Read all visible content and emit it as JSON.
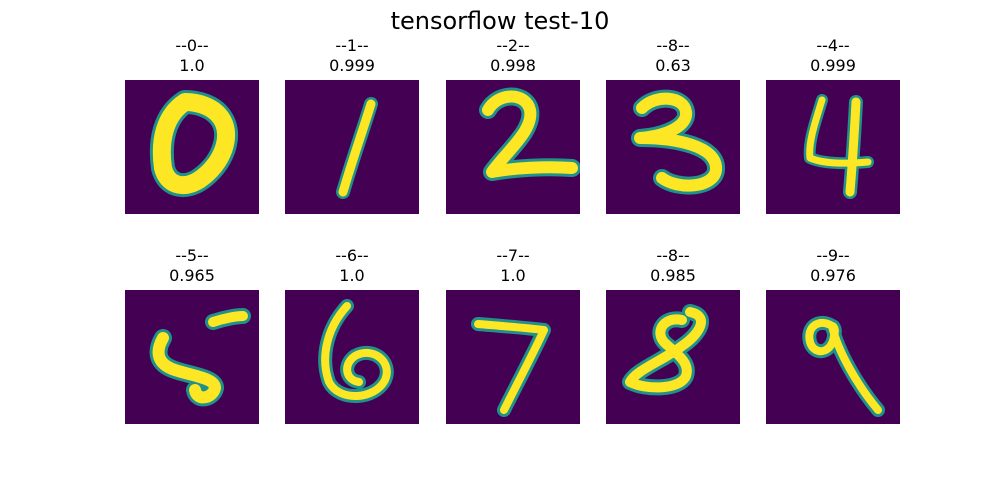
{
  "figure": {
    "title": "tensorflow test-10",
    "colors": {
      "background": "#440154",
      "stroke_core": "#fde725",
      "stroke_edge": "#21918c"
    }
  },
  "panels": [
    {
      "label": "--0--",
      "score": "1.0",
      "digit": "0"
    },
    {
      "label": "--1--",
      "score": "0.999",
      "digit": "1"
    },
    {
      "label": "--2--",
      "score": "0.998",
      "digit": "2"
    },
    {
      "label": "--8--",
      "score": "0.63",
      "digit": "3"
    },
    {
      "label": "--4--",
      "score": "0.999",
      "digit": "4"
    },
    {
      "label": "--5--",
      "score": "0.965",
      "digit": "5"
    },
    {
      "label": "--6--",
      "score": "1.0",
      "digit": "6"
    },
    {
      "label": "--7--",
      "score": "1.0",
      "digit": "7"
    },
    {
      "label": "--8--",
      "score": "0.985",
      "digit": "8"
    },
    {
      "label": "--9--",
      "score": "0.976",
      "digit": "9"
    }
  ]
}
